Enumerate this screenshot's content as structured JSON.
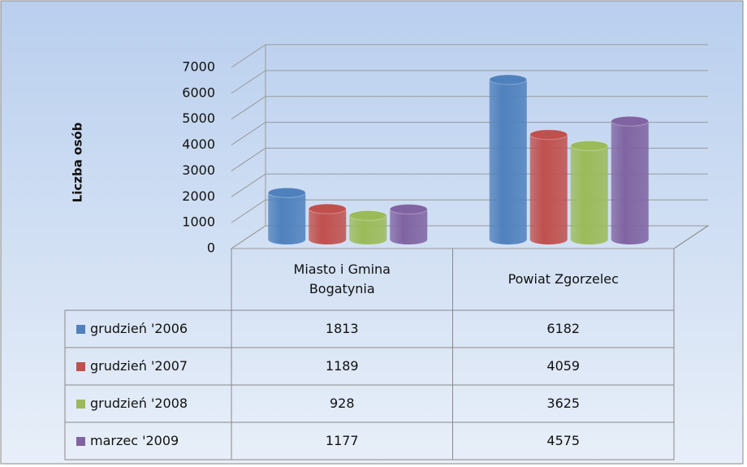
{
  "chart_data": {
    "type": "bar3d",
    "y_label": "Liczba osób",
    "categories": [
      "Miasto i Gmina Bogatynia",
      "Powiat Zgorzelec"
    ],
    "series": [
      {
        "name": "grudzień '2006",
        "color": "#4f81bd",
        "values": [
          1813,
          6182
        ]
      },
      {
        "name": "grudzień '2007",
        "color": "#c0504d",
        "values": [
          1189,
          4059
        ]
      },
      {
        "name": "grudzień '2008",
        "color": "#9bbb59",
        "values": [
          928,
          3625
        ]
      },
      {
        "name": "marzec '2009",
        "color": "#8064a2",
        "values": [
          1177,
          4575
        ]
      }
    ],
    "ylim": [
      0,
      7000
    ],
    "yticks": [
      0,
      1000,
      2000,
      3000,
      4000,
      5000,
      6000,
      7000
    ],
    "grid": true
  }
}
